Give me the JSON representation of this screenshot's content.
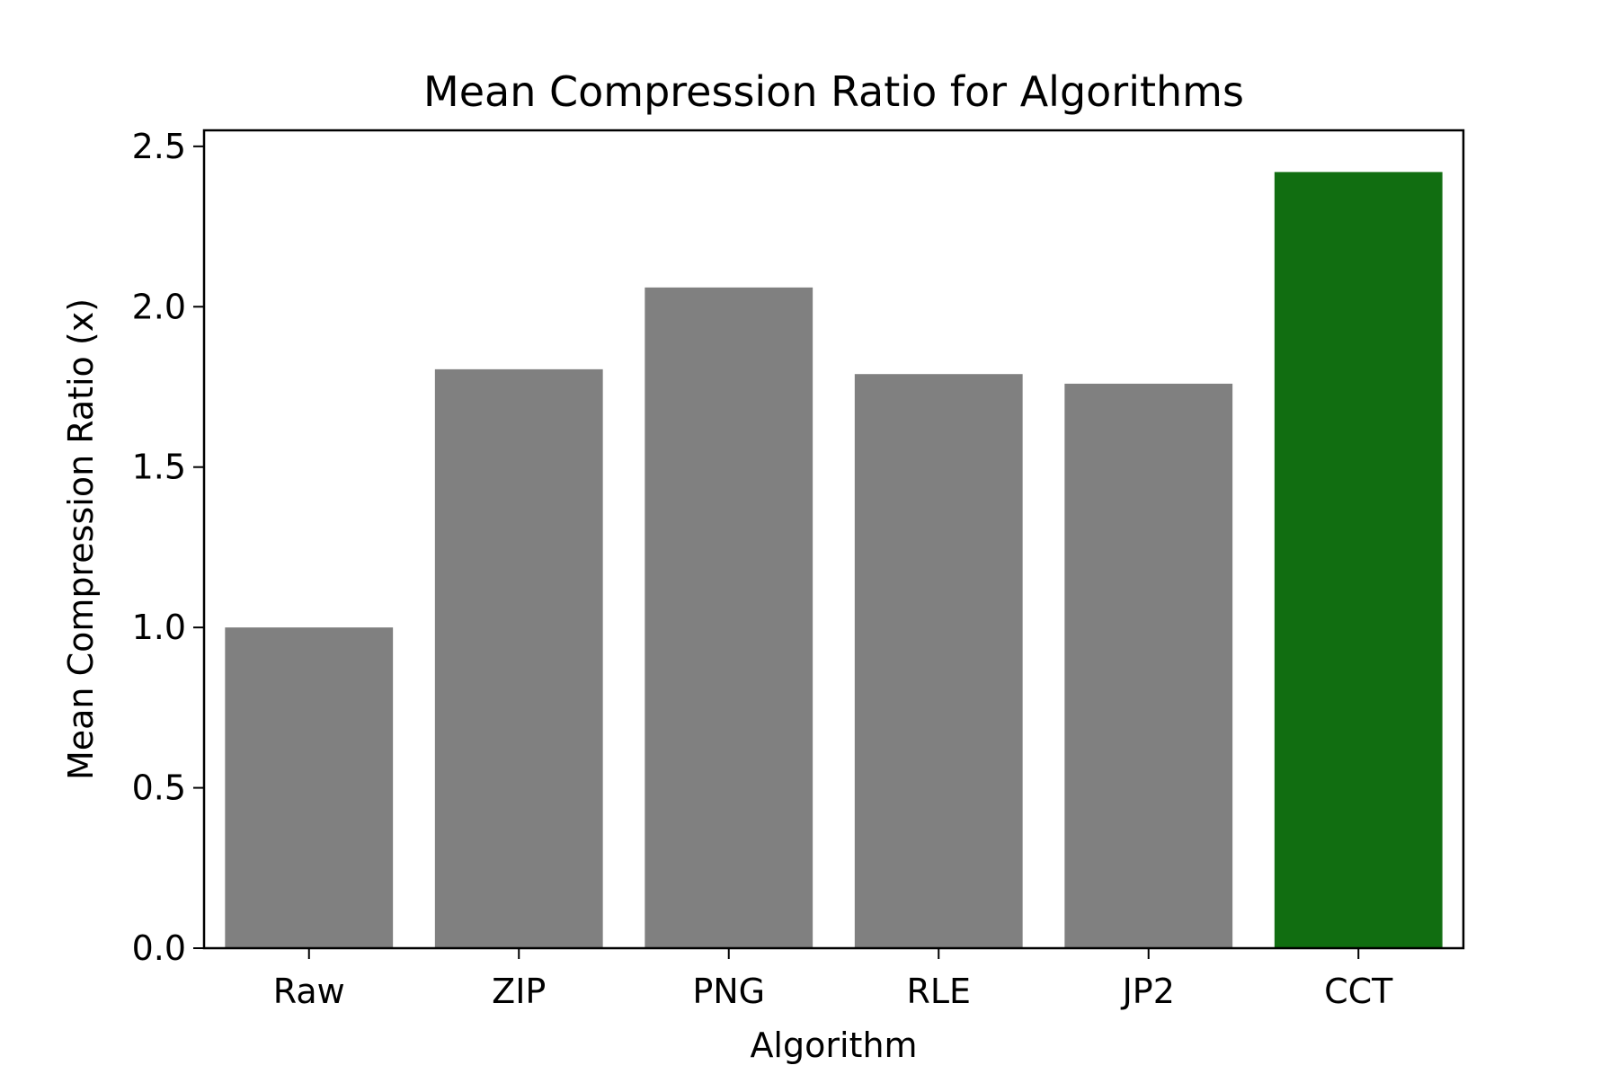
{
  "chart_data": {
    "type": "bar",
    "title": "Mean Compression Ratio for Algorithms",
    "xlabel": "Algorithm",
    "ylabel": "Mean Compression Ratio (x)",
    "categories": [
      "Raw",
      "ZIP",
      "PNG",
      "RLE",
      "JP2",
      "CCT"
    ],
    "values": [
      1.0,
      1.805,
      2.06,
      1.79,
      1.76,
      2.42
    ],
    "colors": [
      "#808080",
      "#808080",
      "#808080",
      "#808080",
      "#808080",
      "#116e11"
    ],
    "ylim": [
      0,
      2.55
    ],
    "yticks": [
      0.0,
      0.5,
      1.0,
      1.5,
      2.0,
      2.5
    ],
    "ytick_labels": [
      "0.0",
      "0.5",
      "1.0",
      "1.5",
      "2.0",
      "2.5"
    ],
    "grid": false,
    "legend": "none"
  }
}
